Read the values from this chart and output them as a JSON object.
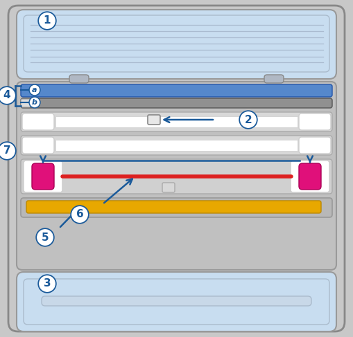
{
  "figsize": [
    5.09,
    4.87
  ],
  "dpi": 100,
  "bg_light_blue": "#c8ddf0",
  "bg_medium_gray": "#b8b8b8",
  "bg_light_gray": "#d0d0d0",
  "bg_inner_gray": "#c0c0c0",
  "blue_strip_color": "#5588cc",
  "gray_strip_color": "#909090",
  "white_color": "#ffffff",
  "pink_color": "#e0107a",
  "red_line_color": "#dd2020",
  "yellow_color": "#e8a800",
  "arrow_color": "#1a5a9a",
  "circle_border": "#1a5a9a",
  "circle_bg": "#ffffff",
  "label_color": "#1a5a9a",
  "outer_bg": "#c8c8c8",
  "outer_edge": "#888888",
  "tray_edge": "#999999",
  "bottom_bar_color": "#c8c8c8"
}
